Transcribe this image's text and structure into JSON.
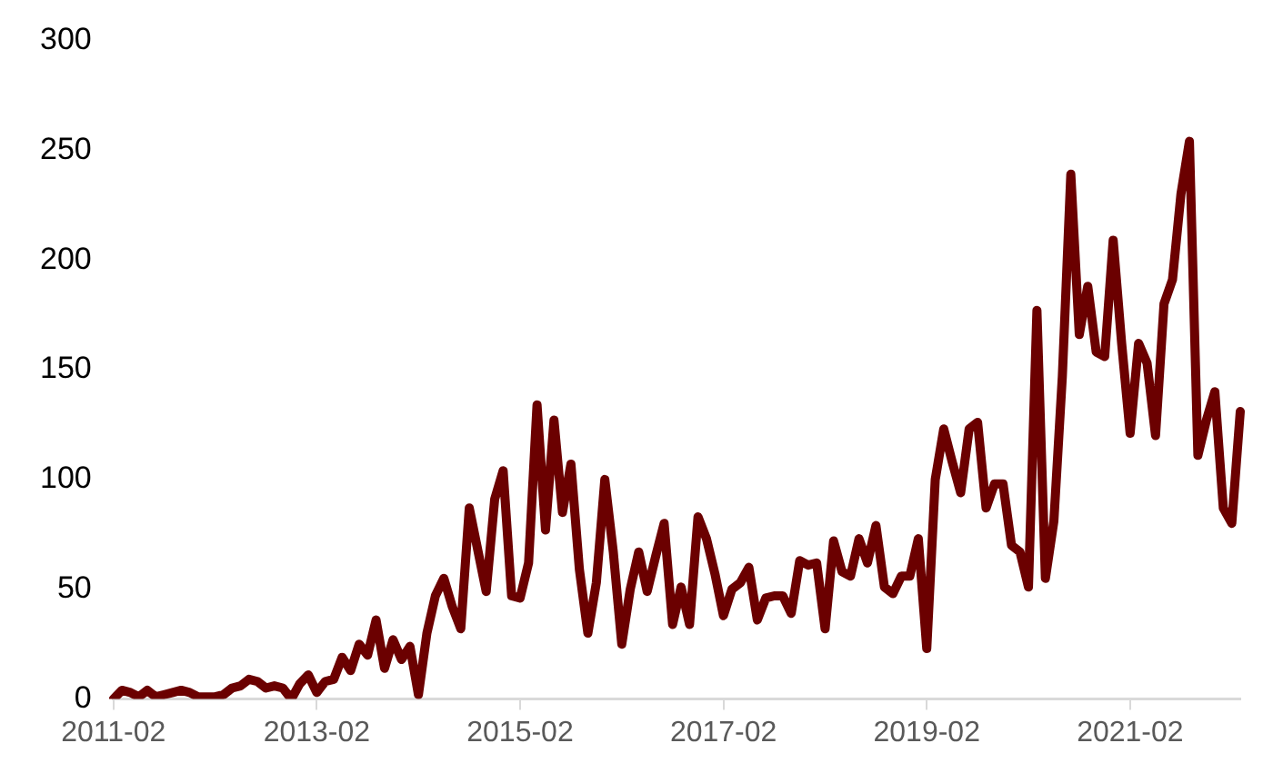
{
  "chart_data": {
    "type": "line",
    "categories": [
      "2011-02",
      null,
      null,
      null,
      null,
      null,
      null,
      null,
      null,
      null,
      null,
      null,
      null,
      null,
      null,
      null,
      null,
      null,
      null,
      null,
      null,
      null,
      null,
      null,
      "2013-02",
      null,
      null,
      null,
      null,
      null,
      null,
      null,
      null,
      null,
      null,
      null,
      null,
      null,
      null,
      null,
      null,
      null,
      null,
      null,
      null,
      null,
      null,
      null,
      "2015-02",
      null,
      null,
      null,
      null,
      null,
      null,
      null,
      null,
      null,
      null,
      null,
      null,
      null,
      null,
      null,
      null,
      null,
      null,
      null,
      null,
      null,
      null,
      null,
      "2017-02",
      null,
      null,
      null,
      null,
      null,
      null,
      null,
      null,
      null,
      null,
      null,
      null,
      null,
      null,
      null,
      null,
      null,
      null,
      null,
      null,
      null,
      null,
      null,
      "2019-02",
      null,
      null,
      null,
      null,
      null,
      null,
      null,
      null,
      null,
      null,
      null,
      null,
      null,
      null,
      null,
      null,
      null,
      null,
      null,
      null,
      null,
      null,
      null,
      "2021-02",
      null,
      null,
      null,
      null,
      null,
      null,
      null,
      null,
      null,
      null,
      null,
      null,
      null
    ],
    "series": [
      {
        "color": "#6b0000",
        "values": [
          0,
          4,
          3,
          1,
          4,
          1,
          2,
          3,
          4,
          3,
          1,
          1,
          1,
          2,
          5,
          6,
          9,
          8,
          5,
          6,
          5,
          0,
          7,
          11,
          3,
          8,
          9,
          19,
          13,
          25,
          20,
          36,
          14,
          27,
          18,
          24,
          2,
          30,
          47,
          55,
          42,
          32,
          87,
          68,
          49,
          91,
          104,
          47,
          46,
          62,
          134,
          77,
          127,
          85,
          107,
          59,
          30,
          53,
          100,
          67,
          25,
          50,
          67,
          49,
          65,
          80,
          34,
          51,
          34,
          83,
          73,
          57,
          38,
          50,
          53,
          60,
          36,
          46,
          47,
          47,
          39,
          63,
          61,
          62,
          32,
          72,
          58,
          56,
          73,
          62,
          79,
          51,
          48,
          56,
          56,
          73,
          23,
          100,
          123,
          108,
          94,
          123,
          126,
          87,
          98,
          98,
          70,
          67,
          51,
          177,
          55,
          81,
          147,
          239,
          166,
          188,
          158,
          156,
          209,
          162,
          121,
          162,
          153,
          120,
          180,
          191,
          230,
          254,
          111,
          127,
          140,
          87,
          80,
          131
        ]
      }
    ],
    "ylim": [
      0,
      300
    ],
    "yticks": [
      0,
      50,
      100,
      150,
      200,
      250,
      300
    ],
    "grid": false,
    "legend": false,
    "marker": "none",
    "line_style": "solid"
  }
}
